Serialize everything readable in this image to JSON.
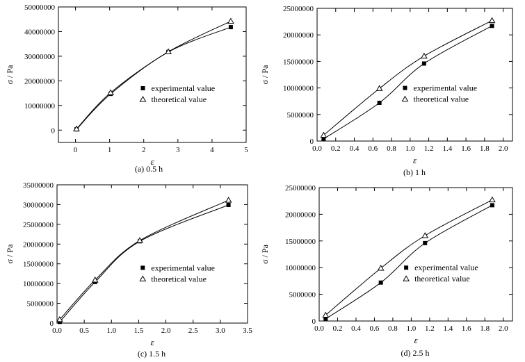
{
  "chart_data": [
    {
      "type": "scatter",
      "caption": "(a) 0.5 h",
      "xlabel": "ε",
      "ylabel": "σ / Pa",
      "xlim": [
        -0.5,
        5
      ],
      "ylim": [
        -5000000,
        50000000
      ],
      "xticks": [
        0,
        1,
        2,
        3,
        4,
        5
      ],
      "xtick_labels": [
        "0",
        "1",
        "2",
        "3",
        "4",
        "5"
      ],
      "yticks": [
        0,
        10000000,
        20000000,
        30000000,
        40000000,
        50000000
      ],
      "ytick_labels": [
        "0",
        "10000000",
        "20000000",
        "30000000",
        "40000000",
        "50000000"
      ],
      "grid": false,
      "legend_position": "center-right",
      "series": [
        {
          "name": "experimental value",
          "marker": "filled-square",
          "x": [
            0.03,
            1.03,
            2.72,
            4.55
          ],
          "y": [
            300000,
            14700000,
            31700000,
            41800000
          ]
        },
        {
          "name": "theoretical value",
          "marker": "open-triangle",
          "x": [
            0.03,
            1.03,
            2.72,
            4.55
          ],
          "y": [
            500000,
            15200000,
            31800000,
            44200000
          ]
        }
      ]
    },
    {
      "type": "scatter",
      "caption": "(b) 1 h",
      "xlabel": "ε",
      "ylabel": "σ / Pa",
      "xlim": [
        0,
        2.1
      ],
      "ylim": [
        0,
        25000000
      ],
      "xticks": [
        0,
        0.2,
        0.4,
        0.6,
        0.8,
        1.0,
        1.2,
        1.4,
        1.6,
        1.8,
        2.0
      ],
      "xtick_labels": [
        "0.0",
        "0.2",
        "0.4",
        "0.6",
        "0.8",
        "1.0",
        "1.2",
        "1.4",
        "1.6",
        "1.8",
        "2.0"
      ],
      "yticks": [
        0,
        5000000,
        10000000,
        15000000,
        20000000,
        25000000
      ],
      "ytick_labels": [
        "0",
        "5000000",
        "10000000",
        "15000000",
        "20000000",
        "25000000"
      ],
      "grid": false,
      "legend_position": "center-right",
      "series": [
        {
          "name": "experimental value",
          "marker": "filled-square",
          "x": [
            0.07,
            0.67,
            1.15,
            1.88
          ],
          "y": [
            400000,
            7200000,
            14600000,
            21700000
          ]
        },
        {
          "name": "theoretical value",
          "marker": "open-triangle",
          "x": [
            0.07,
            0.67,
            1.15,
            1.88
          ],
          "y": [
            1100000,
            9900000,
            16000000,
            22700000
          ]
        }
      ]
    },
    {
      "type": "scatter",
      "caption": "(c) 1.5 h",
      "xlabel": "ε",
      "ylabel": "σ / Pa",
      "xlim": [
        0,
        3.5
      ],
      "ylim": [
        0,
        35000000
      ],
      "xticks": [
        0,
        0.5,
        1.0,
        1.5,
        2.0,
        2.5,
        3.0,
        3.5
      ],
      "xtick_labels": [
        "0.0",
        "0.5",
        "1.0",
        "1.5",
        "2.0",
        "2.5",
        "3.0",
        "3.5"
      ],
      "yticks": [
        0,
        5000000,
        10000000,
        15000000,
        20000000,
        25000000,
        30000000,
        35000000
      ],
      "ytick_labels": [
        "0",
        "5000000",
        "10000000",
        "15000000",
        "20000000",
        "25000000",
        "30000000",
        "35000000"
      ],
      "grid": false,
      "legend_position": "center-right",
      "series": [
        {
          "name": "experimental value",
          "marker": "filled-square",
          "x": [
            0.05,
            0.7,
            1.52,
            3.15
          ],
          "y": [
            300000,
            10400000,
            20700000,
            29900000
          ]
        },
        {
          "name": "theoretical value",
          "marker": "open-triangle",
          "x": [
            0.05,
            0.7,
            1.52,
            3.15
          ],
          "y": [
            900000,
            10900000,
            20900000,
            31100000
          ]
        }
      ]
    },
    {
      "type": "scatter",
      "caption": "(d) 2.5 h",
      "xlabel": "ε",
      "ylabel": "σ / Pa",
      "xlim": [
        0,
        2.1
      ],
      "ylim": [
        0,
        25000000
      ],
      "xticks": [
        0,
        0.2,
        0.4,
        0.6,
        0.8,
        1.0,
        1.2,
        1.4,
        1.6,
        1.8,
        2.0
      ],
      "xtick_labels": [
        "0.0",
        "0.2",
        "0.4",
        "0.6",
        "0.8",
        "1.0",
        "1.2",
        "1.4",
        "1.6",
        "1.8",
        "2.0"
      ],
      "yticks": [
        0,
        5000000,
        10000000,
        15000000,
        20000000,
        25000000
      ],
      "ytick_labels": [
        "0",
        "5000000",
        "10000000",
        "15000000",
        "20000000",
        "25000000"
      ],
      "grid": false,
      "legend_position": "center-right",
      "series": [
        {
          "name": "experimental value",
          "marker": "filled-square",
          "x": [
            0.07,
            0.67,
            1.15,
            1.88
          ],
          "y": [
            400000,
            7200000,
            14600000,
            21700000
          ]
        },
        {
          "name": "theoretical value",
          "marker": "open-triangle",
          "x": [
            0.07,
            0.67,
            1.15,
            1.88
          ],
          "y": [
            1100000,
            9900000,
            16000000,
            22700000
          ]
        }
      ]
    }
  ]
}
